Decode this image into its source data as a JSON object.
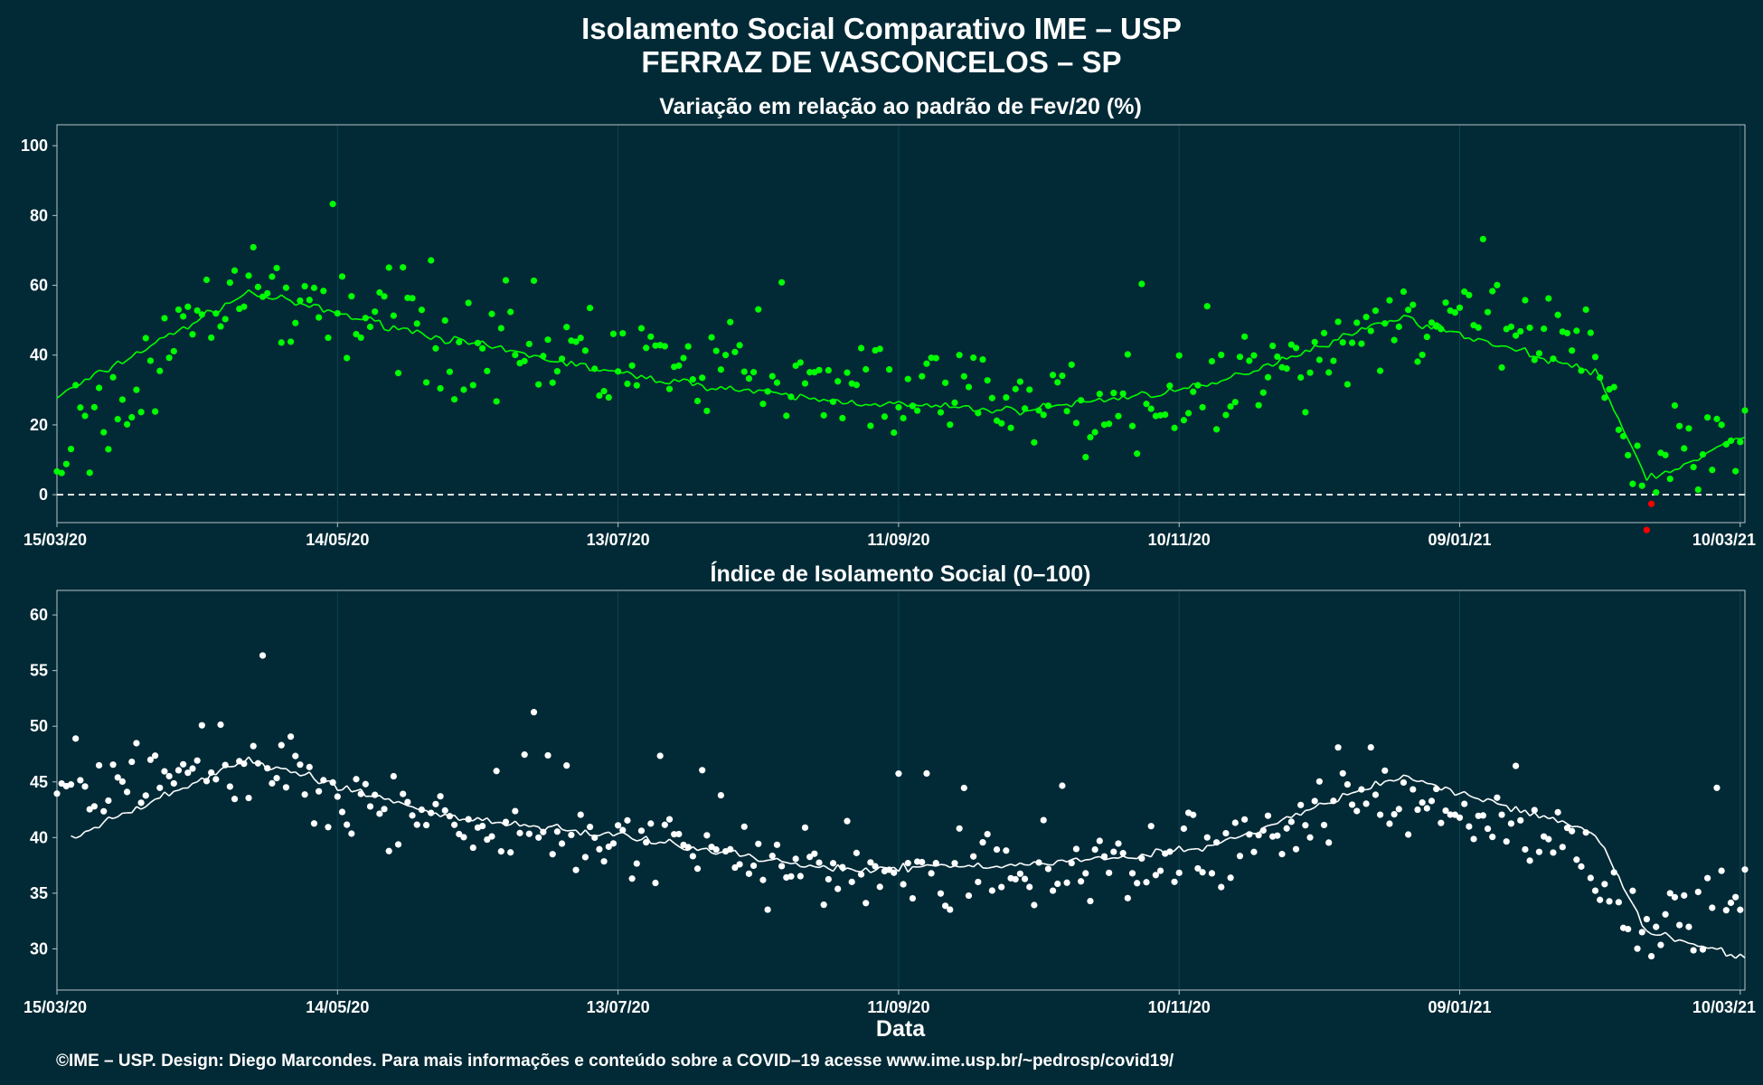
{
  "figure": {
    "title_line1": "Isolamento Social Comparativo IME – USP",
    "title_line2": "FERRAZ DE VASCONCELOS – SP",
    "xlabel": "Data",
    "footer": "©IME – USP. Design: Diego Marcondes. Para mais informações e conteúdo sobre a COVID–19 acesse www.ime.usp.br/~pedrosp/covid19/"
  },
  "colors": {
    "background": "#022a36",
    "positive_series": "#00ff00",
    "negative_series": "#ff0000",
    "index_series": "#ffffff"
  },
  "x_ticks": [
    "15/03/20",
    "14/05/20",
    "13/07/20",
    "11/09/20",
    "10/11/20",
    "09/01/21",
    "10/03/21"
  ],
  "chart_data": [
    {
      "type": "scatter",
      "title": "Variação em relação ao padrão de Fev/20 (%)",
      "x_range": [
        "15/03/20",
        "11/03/21"
      ],
      "ylim": [
        -8,
        106
      ],
      "yticks": [
        0,
        20,
        40,
        60,
        80,
        100
      ],
      "reference_line": 0,
      "grid": true,
      "series": [
        {
          "kind": "points",
          "dates": [
            "15/03/20",
            "25/04/20",
            "05/06/20",
            "16/07/20",
            "26/08/20",
            "06/10/20",
            "16/11/20",
            "27/12/20",
            "07/02/21",
            "18/02/21",
            "24/02/21",
            "11/03/21"
          ],
          "values": [
            8,
            60,
            46,
            38,
            30,
            26,
            27,
            52,
            40,
            -2,
            15,
            21
          ]
        },
        {
          "kind": "moving_average",
          "dates": [
            "15/03/20",
            "25/04/20",
            "05/06/20",
            "16/07/20",
            "26/08/20",
            "06/10/20",
            "16/11/20",
            "27/12/20",
            "07/02/21",
            "18/02/21",
            "24/02/21",
            "11/03/21"
          ],
          "values": [
            28,
            58,
            45,
            34,
            27,
            24,
            31,
            51,
            35,
            5,
            7,
            17
          ]
        }
      ]
    },
    {
      "type": "scatter",
      "title": "Índice de Isolamento Social (0–100)",
      "x_range": [
        "15/03/20",
        "11/03/21"
      ],
      "ylim": [
        26.3,
        62.2
      ],
      "yticks": [
        30,
        35,
        40,
        45,
        50,
        55,
        60
      ],
      "grid": true,
      "series": [
        {
          "kind": "points",
          "dates": [
            "15/03/20",
            "25/04/20",
            "05/06/20",
            "16/07/20",
            "26/08/20",
            "06/10/20",
            "16/11/20",
            "27/12/20",
            "07/02/21",
            "18/02/21",
            "11/03/21"
          ],
          "values": [
            44,
            47,
            41,
            39.5,
            37,
            36.5,
            38.5,
            44,
            38,
            31,
            36
          ]
        },
        {
          "kind": "moving_average",
          "dates": [
            "18/03/20",
            "25/04/20",
            "05/06/20",
            "16/07/20",
            "26/08/20",
            "06/10/20",
            "16/11/20",
            "27/12/20",
            "07/02/21",
            "18/02/21",
            "11/03/21"
          ],
          "values": [
            40,
            47,
            42,
            40,
            37.2,
            37.5,
            39,
            45.5,
            40.5,
            31.5,
            29.3
          ]
        }
      ]
    }
  ]
}
